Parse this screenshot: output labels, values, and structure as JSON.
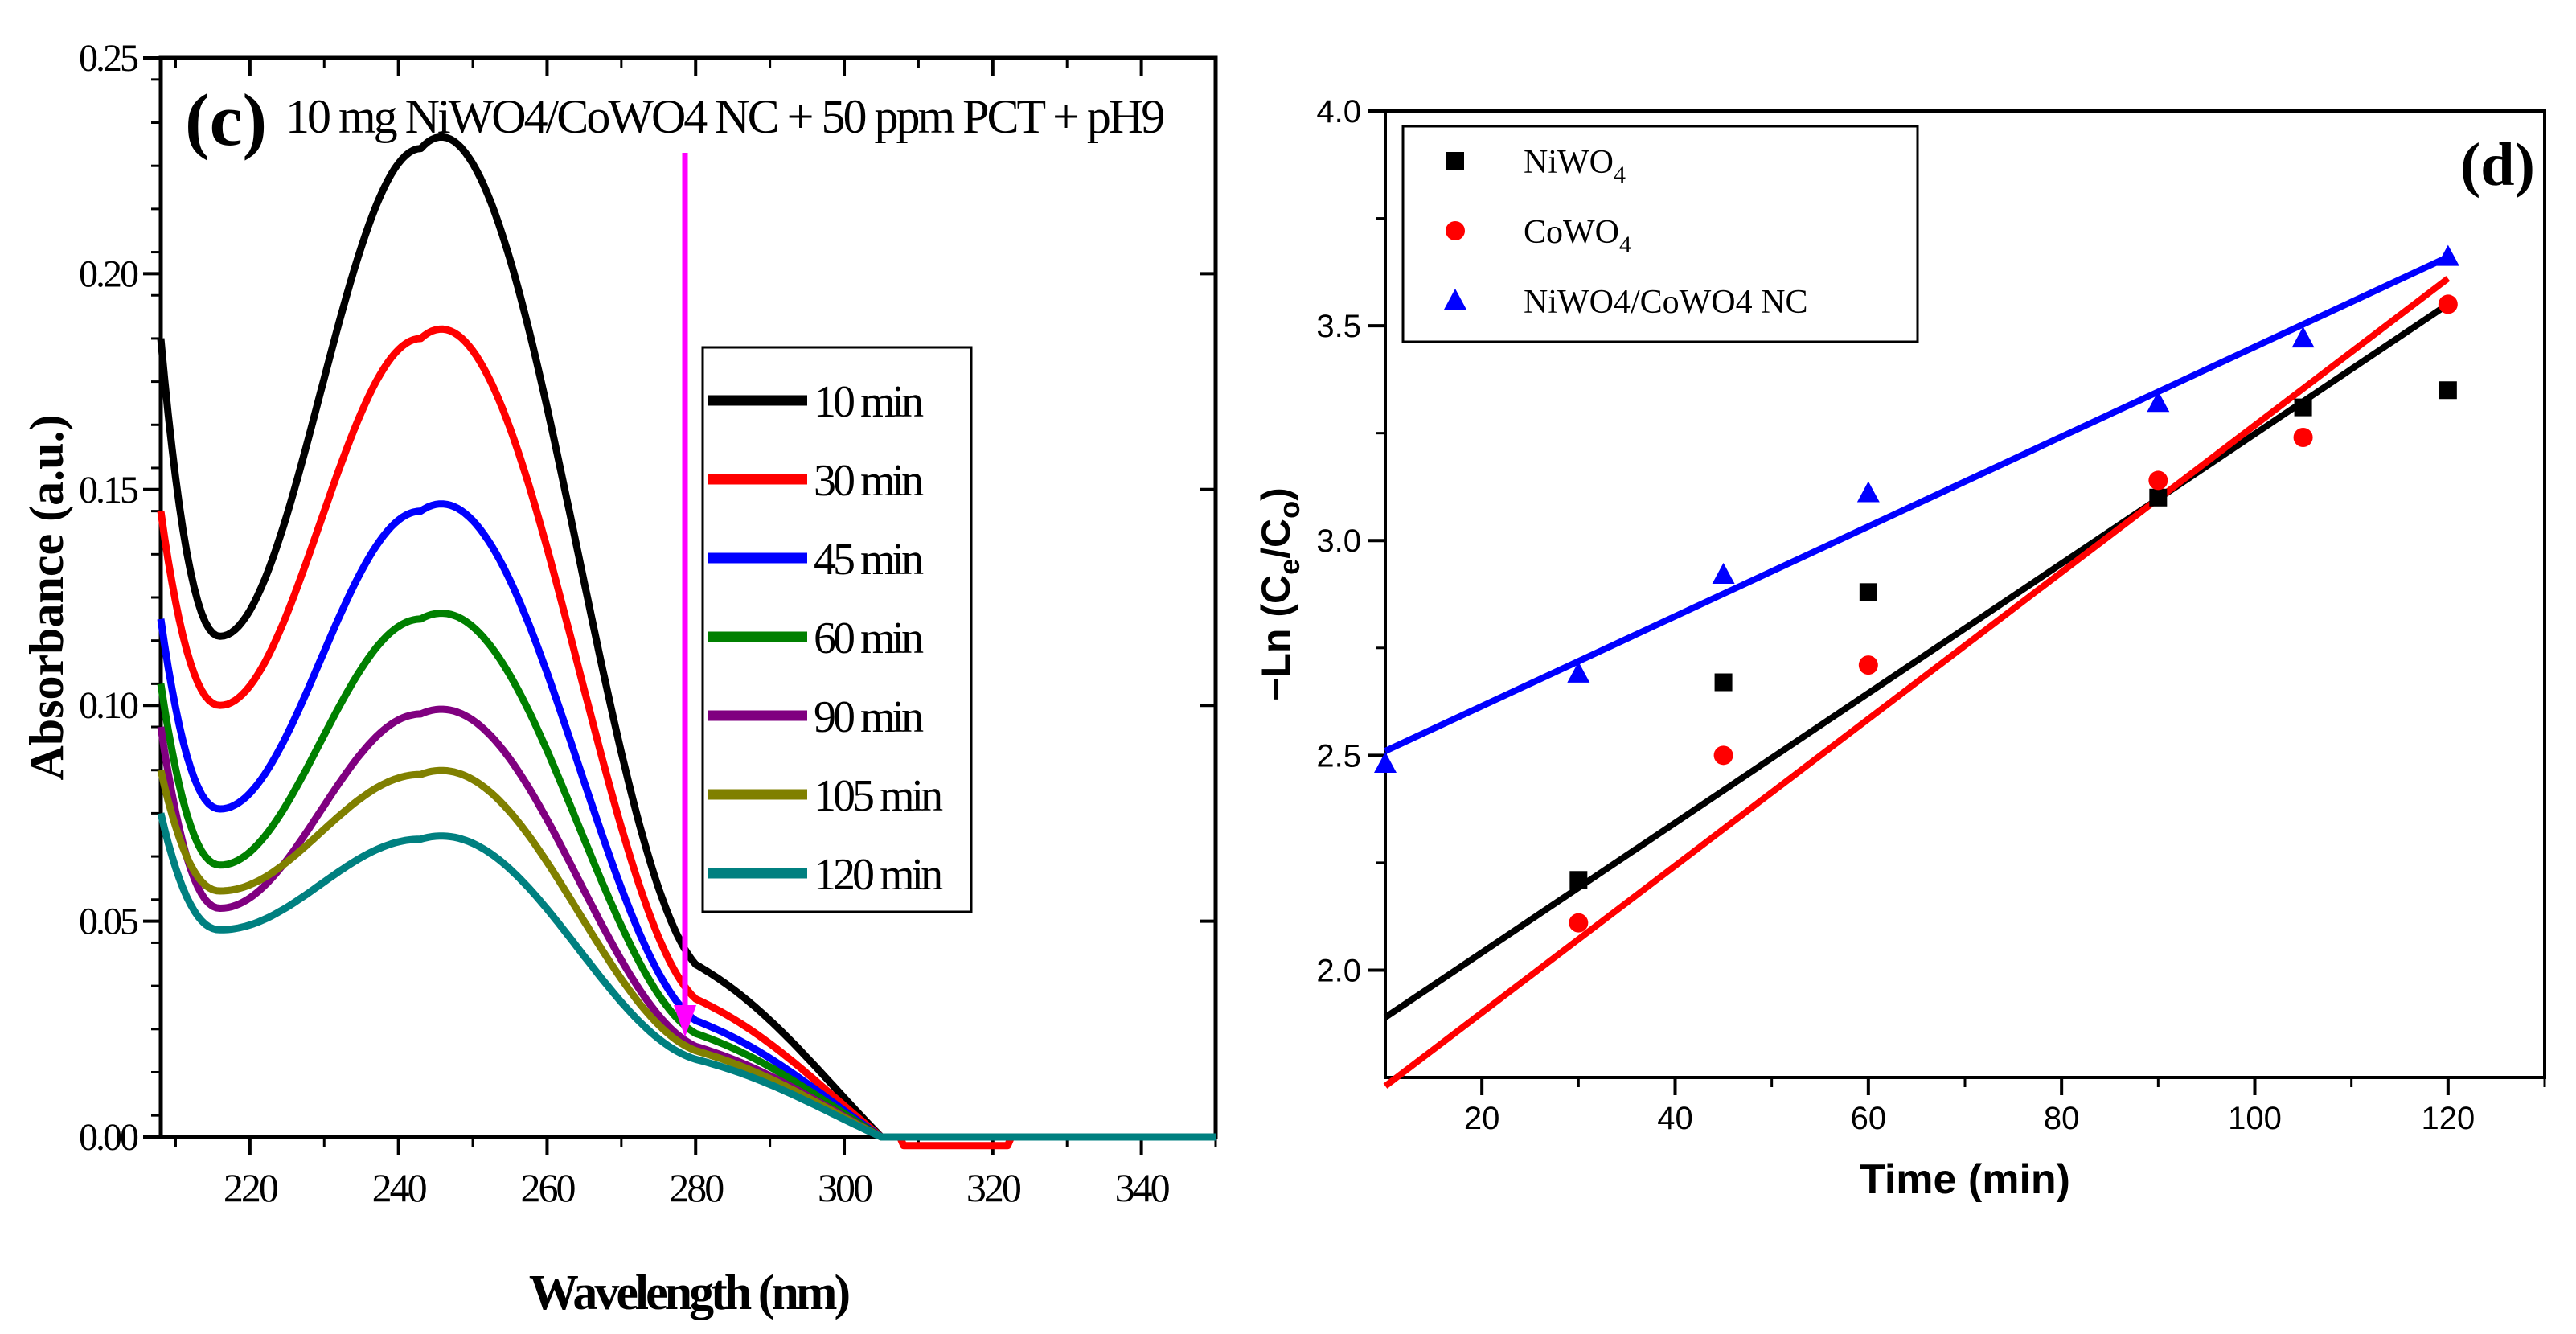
{
  "chart_data": [
    {
      "panel_label": "(c)",
      "type": "line",
      "title": "10 mg NiWO4/CoWO4 NC + 50 ppm PCT + pH9",
      "xlabel": "Wavelength (nm)",
      "ylabel": "Absorbance (a.u.)",
      "xlim": [
        208,
        350
      ],
      "ylim": [
        0.0,
        0.25
      ],
      "xticks": [
        "220",
        "240",
        "260",
        "280",
        "300",
        "320",
        "340"
      ],
      "yticks": [
        "0.00",
        "0.05",
        "0.10",
        "0.15",
        "0.20",
        "0.25"
      ],
      "legend_position": "center-right",
      "annotation": "downward arrow near 280 nm",
      "series": [
        {
          "name": "10 min",
          "color": "#000000",
          "params": [
            0.185,
            0.116,
            0.229,
            0.04,
            0.0
          ]
        },
        {
          "name": "30 min",
          "color": "#ff0000",
          "params": [
            0.145,
            0.1,
            0.185,
            0.032,
            -0.002
          ]
        },
        {
          "name": "45 min",
          "color": "#0000ff",
          "params": [
            0.12,
            0.076,
            0.145,
            0.027,
            0.0
          ]
        },
        {
          "name": "60 min",
          "color": "#008000",
          "params": [
            0.105,
            0.063,
            0.12,
            0.024,
            0.0
          ]
        },
        {
          "name": "90 min",
          "color": "#800080",
          "params": [
            0.095,
            0.053,
            0.098,
            0.021,
            0.0
          ]
        },
        {
          "name": "105 min",
          "color": "#808000",
          "params": [
            0.085,
            0.057,
            0.084,
            0.02,
            0.0
          ]
        },
        {
          "name": "120 min",
          "color": "#008080",
          "params": [
            0.075,
            0.048,
            0.069,
            0.018,
            0.0
          ]
        }
      ]
    },
    {
      "panel_label": "(d)",
      "type": "scatter",
      "title": "",
      "xlabel": "Time (min)",
      "ylabel": "−Ln (Ce/Co)",
      "ylabel_parts": {
        "pre": "−Ln (C",
        "sub1": "e",
        "mid": "/C",
        "sub2": "o",
        "post": ")"
      },
      "xlim": [
        10,
        130
      ],
      "ylim": [
        1.75,
        4.0
      ],
      "xticks": [
        "20",
        "40",
        "60",
        "80",
        "100",
        "120"
      ],
      "yticks": [
        "2.0",
        "2.5",
        "3.0",
        "3.5",
        "4.0"
      ],
      "legend_position": "top-left",
      "x": [
        30,
        45,
        60,
        90,
        105,
        120
      ],
      "series": [
        {
          "name": "NiWO4",
          "name_base": "NiWO",
          "name_sub": "4",
          "marker": "square",
          "color": "#000000",
          "values": [
            2.21,
            2.67,
            2.88,
            3.1,
            3.31,
            3.35
          ],
          "fit": {
            "x": [
              10,
              120
            ],
            "y": [
              1.89,
              3.55
            ]
          }
        },
        {
          "name": "CoWO4",
          "name_base": "CoWO",
          "name_sub": "4",
          "marker": "circle",
          "color": "#ff0000",
          "values": [
            2.11,
            2.5,
            2.71,
            3.14,
            3.24,
            3.55
          ],
          "fit": {
            "x": [
              10,
              120
            ],
            "y": [
              1.73,
              3.61
            ]
          }
        },
        {
          "name": "NiWO4/CoWO4 NC",
          "name_base": "NiWO4/CoWO4 NC",
          "name_sub": "",
          "marker": "triangle",
          "color": "#0000ff",
          "values": [
            2.69,
            2.92,
            3.11,
            3.32,
            3.47,
            3.66
          ],
          "extra_point": {
            "x": 10,
            "y": 2.48
          },
          "fit": {
            "x": [
              10,
              120
            ],
            "y": [
              2.51,
              3.66
            ]
          }
        }
      ]
    }
  ]
}
